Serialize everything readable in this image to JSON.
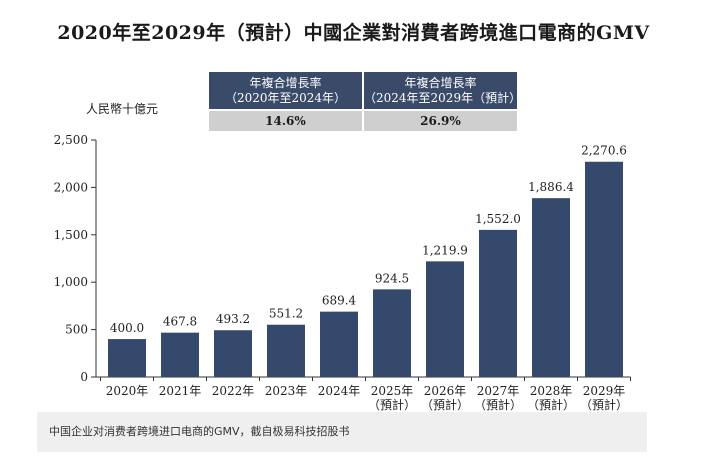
{
  "title": "2020年至2029年（預計）中國企業對消費者跨境進口電商的GMV",
  "unit_label": "人民幣十億元",
  "cagr": {
    "col1_line1": "年複合增長率",
    "col1_line2": "（2020年至2024年）",
    "col1_value": "14.6%",
    "col2_line1": "年複合增長率",
    "col2_line2": "（2024年至2029年（預計）",
    "col2_value": "26.9%"
  },
  "footer": "中国企业对消费者跨境进口电商的GMV，截自极易科技招股书",
  "colors": {
    "bar": "#34496b",
    "header_bg": "#3a4b6a",
    "value_bg": "#cfcfcf"
  },
  "chart_data": {
    "type": "bar",
    "title": "2020年至2029年（預計）中國企業對消費者跨境進口電商的GMV",
    "ylabel": "人民幣十億元",
    "xlabel": "",
    "ylim": [
      0,
      2500
    ],
    "yticks": [
      0,
      500,
      1000,
      1500,
      2000,
      2500
    ],
    "ytick_labels": [
      "0",
      "500",
      "1,000",
      "1,500",
      "2,000",
      "2,500"
    ],
    "grid": false,
    "categories": [
      {
        "line1": "2020年",
        "line2": ""
      },
      {
        "line1": "2021年",
        "line2": ""
      },
      {
        "line1": "2022年",
        "line2": ""
      },
      {
        "line1": "2023年",
        "line2": ""
      },
      {
        "line1": "2024年",
        "line2": ""
      },
      {
        "line1": "2025年",
        "line2": "（預計）"
      },
      {
        "line1": "2026年",
        "line2": "（預計）"
      },
      {
        "line1": "2027年",
        "line2": "（預計）"
      },
      {
        "line1": "2028年",
        "line2": "（預計）"
      },
      {
        "line1": "2029年",
        "line2": "（預計）"
      }
    ],
    "values": [
      400.0,
      467.8,
      493.2,
      551.2,
      689.4,
      924.5,
      1219.9,
      1552.0,
      1886.4,
      2270.6
    ],
    "value_labels": [
      "400.0",
      "467.8",
      "493.2",
      "551.2",
      "689.4",
      "924.5",
      "1,219.9",
      "1,552.0",
      "1,886.4",
      "2,270.6"
    ]
  }
}
